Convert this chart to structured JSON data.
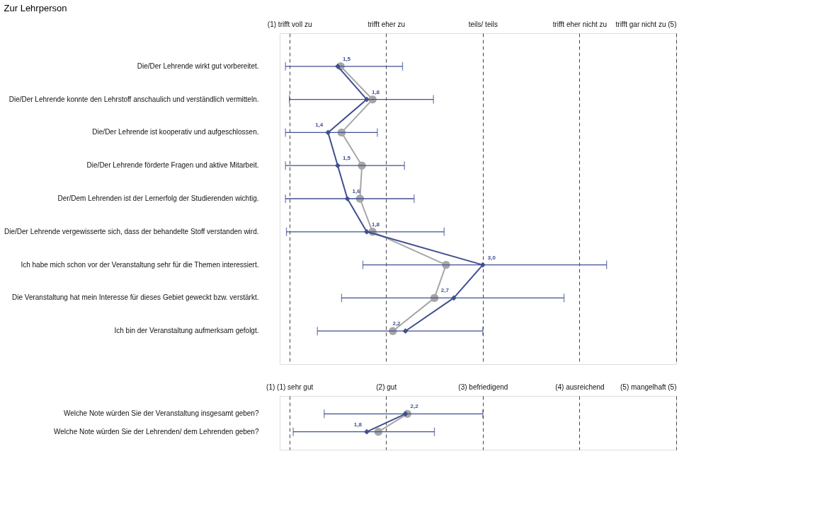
{
  "chart_data": [
    {
      "type": "line",
      "title": "Zur Lehrperson",
      "categories": [
        "Die/Der Lehrende wirkt gut vorbereitet.",
        "Die/Der Lehrende konnte den Lehrstoff anschaulich und verständlich vermitteln.",
        "Die/Der Lehrende ist kooperativ und aufgeschlossen.",
        "Die/Der Lehrende förderte Fragen und aktive Mitarbeit.",
        "Der/Dem Lehrenden ist der Lernerfolg der Studierenden wichtig.",
        "Die/Der Lehrende vergewisserte sich, dass der behandelte Stoff verstanden wird.",
        "Ich habe mich schon vor der Veranstaltung sehr für die Themen interessiert.",
        "Die Veranstaltung hat mein Interesse für dieses Gebiet geweckt bzw. verstärkt.",
        "Ich bin der Veranstaltung aufmerksam gefolgt."
      ],
      "orientation": "horizontal",
      "xlim": [
        0.9,
        5
      ],
      "xticks": [
        {
          "value": 1,
          "label": "(1) trifft voll zu"
        },
        {
          "value": 2,
          "label": "trifft eher zu"
        },
        {
          "value": 3,
          "label": "teils/ teils"
        },
        {
          "value": 4,
          "label": "trifft eher nicht zu"
        },
        {
          "value": 5,
          "label": "trifft gar nicht zu (5)"
        }
      ],
      "grid": "x",
      "series": [
        {
          "color": "#a6a6a6",
          "marker": "circle",
          "values": [
            1.53,
            1.86,
            1.54,
            1.75,
            1.73,
            1.86,
            2.62,
            2.5,
            2.07
          ]
        },
        {
          "color": "#3f4f8f",
          "marker": "diamond",
          "values": [
            1.5,
            1.8,
            1.4,
            1.5,
            1.6,
            1.8,
            3.0,
            2.7,
            2.2
          ],
          "value_labels": [
            "1,5",
            "1,8",
            "1,4",
            "1,5",
            "1,6",
            "1,8",
            "3,0",
            "2,7",
            "2,2"
          ],
          "errors": [
            [
              0.96,
              2.17
            ],
            [
              1.0,
              2.49
            ],
            [
              0.96,
              1.91
            ],
            [
              0.96,
              2.19
            ],
            [
              0.96,
              2.29
            ],
            [
              0.97,
              2.6
            ],
            [
              1.76,
              4.28
            ],
            [
              1.54,
              3.84
            ],
            [
              1.29,
              3.0
            ]
          ]
        }
      ]
    },
    {
      "type": "line",
      "categories": [
        "Welche Note würden Sie der Veranstaltung insgesamt geben?",
        "Welche Note würden Sie der Lehrenden/ dem Lehrenden geben?"
      ],
      "orientation": "horizontal",
      "xlim": [
        0.9,
        5
      ],
      "xticks": [
        {
          "value": 1,
          "label": "(1) (1) sehr gut"
        },
        {
          "value": 2,
          "label": "(2) gut"
        },
        {
          "value": 3,
          "label": "(3) befriedigend"
        },
        {
          "value": 4,
          "label": "(4) ausreichend"
        },
        {
          "value": 5,
          "label": "(5) mangelhaft (5)"
        }
      ],
      "grid": "x",
      "series": [
        {
          "color": "#a6a6a6",
          "marker": "circle",
          "values": [
            2.22,
            1.92
          ]
        },
        {
          "color": "#3f4f8f",
          "marker": "diamond",
          "values": [
            2.2,
            1.8
          ],
          "value_labels": [
            "2,2",
            "1,8"
          ],
          "errors": [
            [
              1.36,
              3.0
            ],
            [
              1.04,
              2.5
            ]
          ]
        }
      ]
    }
  ]
}
